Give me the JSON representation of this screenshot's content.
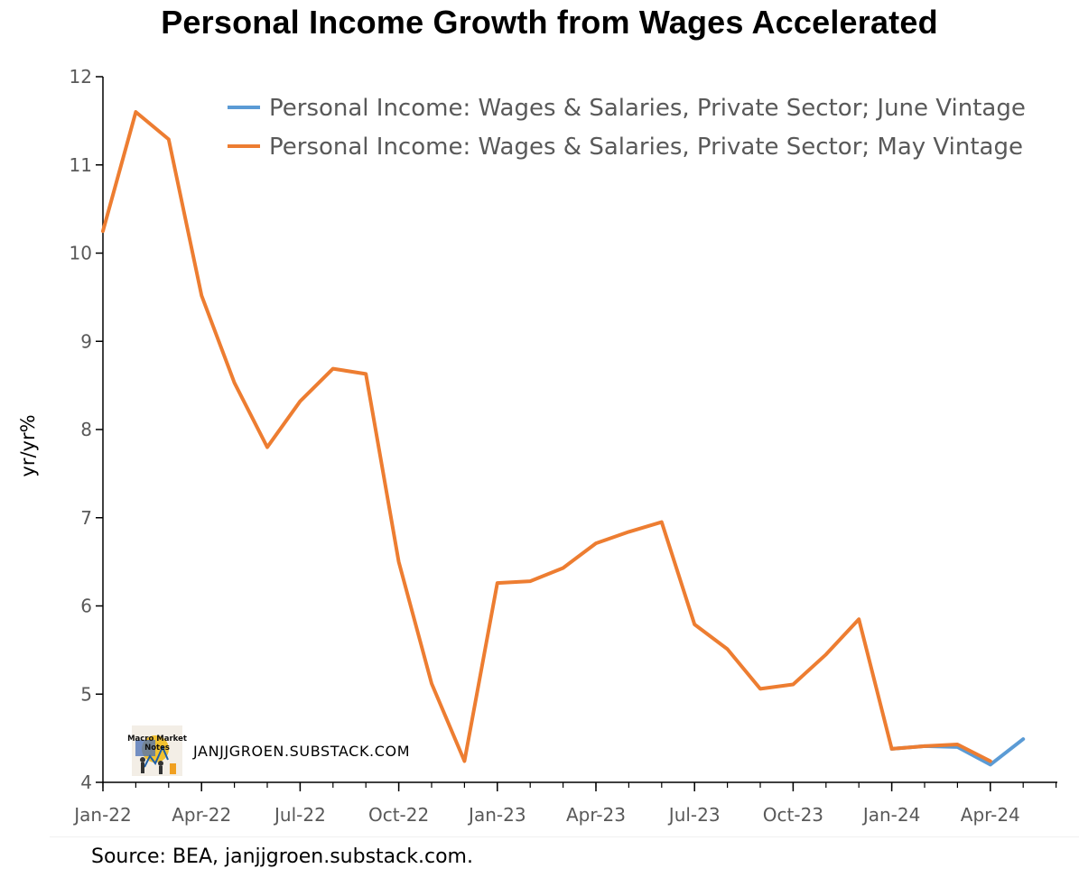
{
  "chart_data": {
    "type": "line",
    "title": "Personal Income Growth from Wages Accelerated",
    "ylabel": "yr/yr%",
    "xlabel": "",
    "ylim": [
      4,
      12
    ],
    "yticks": [
      4,
      5,
      6,
      7,
      8,
      9,
      10,
      11,
      12
    ],
    "x_tick_labels": [
      "Jan-22",
      "Apr-22",
      "Jul-22",
      "Oct-22",
      "Jan-23",
      "Apr-23",
      "Jul-23",
      "Oct-23",
      "Jan-24",
      "Apr-24"
    ],
    "x": [
      "2022-01",
      "2022-02",
      "2022-03",
      "2022-04",
      "2022-05",
      "2022-06",
      "2022-07",
      "2022-08",
      "2022-09",
      "2022-10",
      "2022-11",
      "2022-12",
      "2023-01",
      "2023-02",
      "2023-03",
      "2023-04",
      "2023-05",
      "2023-06",
      "2023-07",
      "2023-08",
      "2023-09",
      "2023-10",
      "2023-11",
      "2023-12",
      "2024-01",
      "2024-02",
      "2024-03",
      "2024-04",
      "2024-05"
    ],
    "grid": false,
    "legend_position": "top-right",
    "series": [
      {
        "name": "Personal Income: Wages & Salaries, Private Sector; June Vintage",
        "color": "#5b9bd5",
        "values": [
          null,
          null,
          null,
          null,
          null,
          null,
          null,
          null,
          null,
          null,
          null,
          null,
          null,
          null,
          null,
          null,
          null,
          null,
          null,
          null,
          null,
          null,
          null,
          null,
          4.38,
          4.41,
          4.4,
          4.2,
          4.49
        ]
      },
      {
        "name": "Personal Income: Wages & Salaries, Private Sector; May Vintage",
        "color": "#ed7d31",
        "values": [
          10.25,
          11.6,
          11.29,
          9.52,
          8.53,
          7.8,
          8.32,
          8.69,
          8.63,
          6.5,
          5.12,
          4.24,
          6.26,
          6.28,
          6.43,
          6.71,
          6.84,
          6.95,
          5.79,
          5.51,
          5.06,
          5.11,
          5.45,
          5.85,
          4.38,
          4.41,
          4.43,
          4.24,
          null
        ]
      }
    ]
  },
  "watermark": {
    "text": "JANJJGROEN.SUBSTACK.COM",
    "logo_text": [
      "Macro Market",
      "Notes"
    ]
  },
  "source_note": "Source: BEA, janjjgroen.substack.com."
}
